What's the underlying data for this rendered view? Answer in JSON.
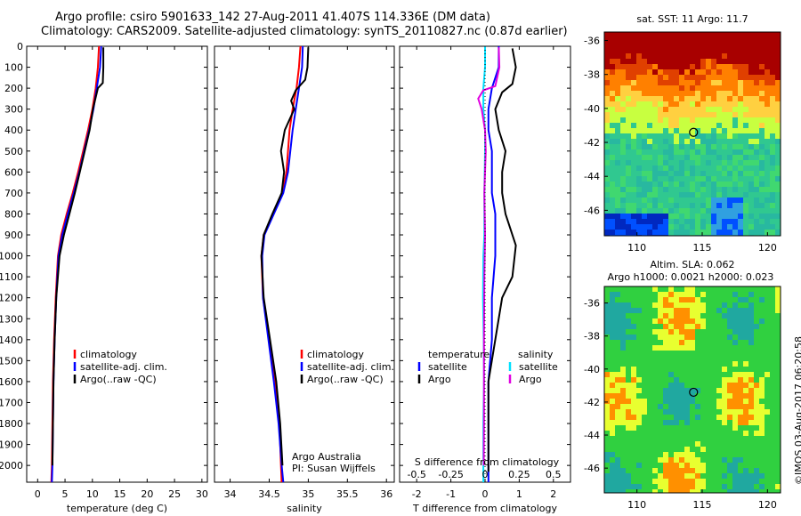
{
  "header": {
    "line1": "Argo profile: csiro 5901633_142 27-Aug-2011 41.407S 114.336E (DM data)",
    "line2": "Climatology: CARS2009. Satellite-adjusted climatology: synTS_20110827.nc (0.87d earlier)"
  },
  "credit": {
    "org": "Argo Australia",
    "pi": "PI: Susan Wijffels"
  },
  "imos_stamp": "©IMOS 03-Aug-2017 06:20:58",
  "chart_data": [
    {
      "id": "temperature",
      "type": "line",
      "xlabel": "temperature (deg C)",
      "xlim": [
        -2,
        31
      ],
      "xticks": [
        0,
        5,
        10,
        15,
        20,
        25,
        30
      ],
      "xtick_labels": [
        "0",
        "5",
        "10",
        "15",
        "20",
        "25",
        "30"
      ],
      "ylim": [
        0,
        2080
      ],
      "yticks": [
        0,
        100,
        200,
        300,
        400,
        500,
        600,
        700,
        800,
        900,
        1000,
        1100,
        1200,
        1300,
        1400,
        1500,
        1600,
        1700,
        1800,
        1900,
        2000
      ],
      "ytick_labels": [
        "0",
        "100",
        "200",
        "300",
        "400",
        "500",
        "600",
        "700",
        "800",
        "900",
        "1000",
        "1100",
        "1200",
        "1300",
        "1400",
        "1500",
        "1600",
        "1700",
        "1800",
        "1900",
        "2000"
      ],
      "legend": [
        "climatology",
        "satellite-adj. clim.",
        "Argo(..raw -QC)"
      ],
      "series": [
        {
          "name": "climatology",
          "color": "#ff0000",
          "x": [
            11.2,
            11.0,
            10.6,
            10.0,
            9.2,
            8.3,
            7.4,
            6.4,
            5.3,
            4.3,
            3.7,
            3.3,
            3.0,
            2.8,
            2.7,
            2.6,
            2.5
          ],
          "y": [
            0,
            100,
            200,
            300,
            400,
            500,
            600,
            700,
            800,
            900,
            1000,
            1200,
            1400,
            1600,
            1800,
            2000,
            2080
          ]
        },
        {
          "name": "satellite-adj. clim.",
          "color": "#0000ff",
          "x": [
            11.6,
            11.4,
            10.8,
            10.2,
            9.4,
            8.5,
            7.6,
            6.6,
            5.5,
            4.5,
            3.8,
            3.4,
            3.1,
            2.9,
            2.8,
            2.7,
            2.6
          ],
          "y": [
            0,
            100,
            200,
            300,
            400,
            500,
            600,
            700,
            800,
            900,
            1000,
            1200,
            1400,
            1600,
            1800,
            2000,
            2080
          ]
        },
        {
          "name": "Argo(..raw -QC)",
          "color": "#000000",
          "x": [
            12.0,
            12.0,
            11.9,
            11.0,
            10.1,
            9.5,
            8.6,
            7.7,
            6.8,
            5.8,
            4.8,
            4.0,
            3.4,
            3.1,
            2.9,
            2.8,
            2.7
          ],
          "y": [
            5,
            100,
            175,
            200,
            300,
            400,
            500,
            600,
            700,
            800,
            900,
            1000,
            1200,
            1400,
            1600,
            1800,
            2000
          ]
        }
      ]
    },
    {
      "id": "salinity",
      "type": "line",
      "xlabel": "salinity",
      "xlim": [
        33.8,
        36.1
      ],
      "xticks": [
        34,
        34.5,
        35,
        35.5,
        36
      ],
      "xtick_labels": [
        "34",
        "34.5",
        "35",
        "35.5",
        "36"
      ],
      "ylim": [
        0,
        2080
      ],
      "legend": [
        "climatology",
        "satellite-adj. clim.",
        "Argo(..raw -QC)"
      ],
      "series": [
        {
          "name": "climatology",
          "color": "#ff0000",
          "x": [
            34.9,
            34.88,
            34.85,
            34.8,
            34.76,
            34.74,
            34.72,
            34.67,
            34.55,
            34.43,
            34.4,
            34.42,
            34.5,
            34.58,
            34.63,
            34.65,
            34.66
          ],
          "y": [
            0,
            100,
            200,
            300,
            400,
            500,
            600,
            700,
            800,
            900,
            1000,
            1200,
            1400,
            1600,
            1800,
            2000,
            2080
          ]
        },
        {
          "name": "satellite-adj. clim.",
          "color": "#0000ff",
          "x": [
            34.93,
            34.92,
            34.88,
            34.84,
            34.8,
            34.77,
            34.74,
            34.68,
            34.56,
            34.44,
            34.41,
            34.42,
            34.49,
            34.56,
            34.62,
            34.66,
            34.68
          ],
          "y": [
            0,
            100,
            200,
            300,
            400,
            500,
            600,
            700,
            800,
            900,
            1000,
            1200,
            1400,
            1600,
            1800,
            2000,
            2080
          ]
        },
        {
          "name": "Argo(..raw -QC)",
          "color": "#000000",
          "x": [
            35.0,
            34.99,
            34.96,
            34.84,
            34.78,
            34.82,
            34.7,
            34.65,
            34.69,
            34.66,
            34.54,
            34.43,
            34.4,
            34.43,
            34.51,
            34.59,
            34.64,
            34.67
          ],
          "y": [
            5,
            100,
            160,
            210,
            260,
            300,
            400,
            500,
            600,
            700,
            800,
            900,
            1000,
            1200,
            1400,
            1600,
            1800,
            2000
          ]
        }
      ]
    },
    {
      "id": "difference",
      "type": "line",
      "xlabel": "T difference from climatology",
      "xlabel_top": "S difference from climatology",
      "xlim": [
        -2.5,
        2.5
      ],
      "xticks": [
        -2,
        -1,
        0,
        1,
        2
      ],
      "xtick_labels": [
        "-2",
        "-1",
        "0",
        "1",
        "2"
      ],
      "xticks_s": [
        -0.5,
        -0.25,
        0,
        0.25,
        0.5
      ],
      "xtick_labels_s": [
        "-0.5",
        "-0.25",
        "0",
        "0.25",
        "0.5"
      ],
      "ylim": [
        0,
        2080
      ],
      "legend_t_title": "temperature",
      "legend_s_title": "salinity",
      "legend": [
        "satellite",
        "Argo",
        "satellite",
        "Argo"
      ],
      "series": [
        {
          "name": "temperature satellite",
          "color": "#0000ff",
          "x": [
            0.4,
            0.4,
            0.2,
            0.1,
            0.1,
            0.2,
            0.2,
            0.2,
            0.3,
            0.3,
            0.3,
            0.2,
            0.2,
            0.1,
            0.1,
            0.1,
            0.1
          ],
          "y": [
            0,
            100,
            200,
            300,
            400,
            500,
            600,
            700,
            800,
            900,
            1000,
            1200,
            1400,
            1600,
            1800,
            2000,
            2080
          ]
        },
        {
          "name": "temperature Argo",
          "color": "#000000",
          "x": [
            0.8,
            0.9,
            0.8,
            0.5,
            0.3,
            0.4,
            0.6,
            0.5,
            0.5,
            0.6,
            0.9,
            0.8,
            0.5,
            0.3,
            0.1,
            0.1,
            0.1,
            0.1
          ],
          "y": [
            10,
            100,
            180,
            220,
            300,
            400,
            500,
            600,
            700,
            800,
            950,
            1100,
            1200,
            1400,
            1600,
            1800,
            2000,
            2030
          ]
        },
        {
          "name": "salinity satellite",
          "color": "#00e0ff",
          "x": [
            0.0,
            0.0,
            -0.05,
            -0.05,
            0.0,
            0.0,
            -0.02,
            -0.02,
            -0.05,
            -0.06,
            -0.04,
            -0.03,
            -0.05,
            -0.05,
            -0.05
          ],
          "y": [
            0,
            100,
            200,
            300,
            400,
            500,
            700,
            900,
            1000,
            1200,
            1400,
            1600,
            1800,
            2000,
            2080
          ]
        },
        {
          "name": "salinity Argo",
          "color": "#e000e0",
          "x": [
            0.4,
            0.42,
            0.3,
            -0.05,
            -0.2,
            -0.1,
            0.0,
            0.02,
            0.0,
            -0.02,
            0.0,
            -0.02,
            -0.03,
            -0.03,
            -0.03,
            -0.04
          ],
          "y": [
            5,
            100,
            190,
            210,
            250,
            300,
            400,
            500,
            600,
            700,
            900,
            1100,
            1400,
            1600,
            1800,
            2000
          ]
        }
      ]
    },
    {
      "id": "sst_map",
      "type": "heatmap",
      "title": "sat. SST: 11  Argo: 11.7",
      "xlim": [
        107.5,
        121
      ],
      "ylim": [
        -47.5,
        -35.5
      ],
      "xticks": [
        110,
        115,
        120
      ],
      "xtick_labels": [
        "110",
        "115",
        "120"
      ],
      "yticks": [
        -36,
        -38,
        -40,
        -42,
        -44,
        -46
      ],
      "ytick_labels": [
        "-36",
        "-38",
        "-40",
        "-42",
        "-44",
        "-46"
      ],
      "marker": {
        "lon": 114.336,
        "lat": -41.407
      },
      "colors": {
        "hot": "#a80000",
        "warm": "#ff8000",
        "mid": "#c8ff40",
        "cool": "#30c890",
        "cold": "#0050ff"
      }
    },
    {
      "id": "sla_map",
      "type": "heatmap",
      "title": "Altim. SLA: 0.062",
      "subtitle": "Argo h1000: 0.0021  h2000: 0.023",
      "xlim": [
        107.5,
        121
      ],
      "ylim": [
        -47.5,
        -35.0
      ],
      "xticks": [
        110,
        115,
        120
      ],
      "xtick_labels": [
        "110",
        "115",
        "120"
      ],
      "yticks": [
        -36,
        -38,
        -40,
        -42,
        -44,
        -46
      ],
      "ytick_labels": [
        "-36",
        "-38",
        "-40",
        "-42",
        "-44",
        "-46"
      ],
      "marker": {
        "lon": 114.336,
        "lat": -41.407
      },
      "colors": {
        "high": "#ff9000",
        "mid": "#e8ff30",
        "base": "#30d040",
        "low": "#20a8a0"
      }
    }
  ]
}
